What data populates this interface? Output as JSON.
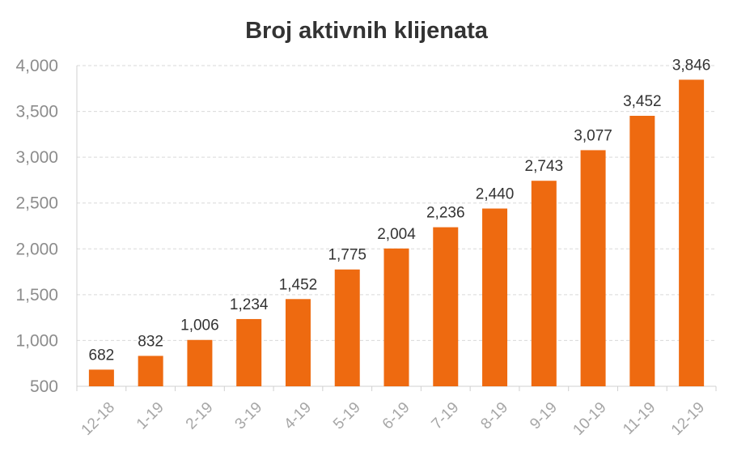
{
  "chart_data": {
    "type": "bar",
    "title": "Broj aktivnih klijenata",
    "xlabel": "",
    "ylabel": "",
    "categories": [
      "12-18",
      "1-19",
      "2-19",
      "3-19",
      "4-19",
      "5-19",
      "6-19",
      "7-19",
      "8-19",
      "9-19",
      "10-19",
      "11-19",
      "12-19"
    ],
    "values": [
      682,
      832,
      1006,
      1234,
      1452,
      1775,
      2004,
      2236,
      2440,
      2743,
      3077,
      3452,
      3846
    ],
    "value_labels": [
      "682",
      "832",
      "1,006",
      "1,234",
      "1,452",
      "1,775",
      "2,004",
      "2,236",
      "2,440",
      "2,743",
      "3,077",
      "3,452",
      "3,846"
    ],
    "ylim": [
      500,
      4000
    ],
    "yticks": [
      500,
      1000,
      1500,
      2000,
      2500,
      3000,
      3500,
      4000
    ],
    "ytick_labels": [
      "500",
      "1,000",
      "1,500",
      "2,000",
      "2,500",
      "3,000",
      "3,500",
      "4,000"
    ],
    "grid": true,
    "legend": "none",
    "bar_color": "#ee6a10"
  }
}
